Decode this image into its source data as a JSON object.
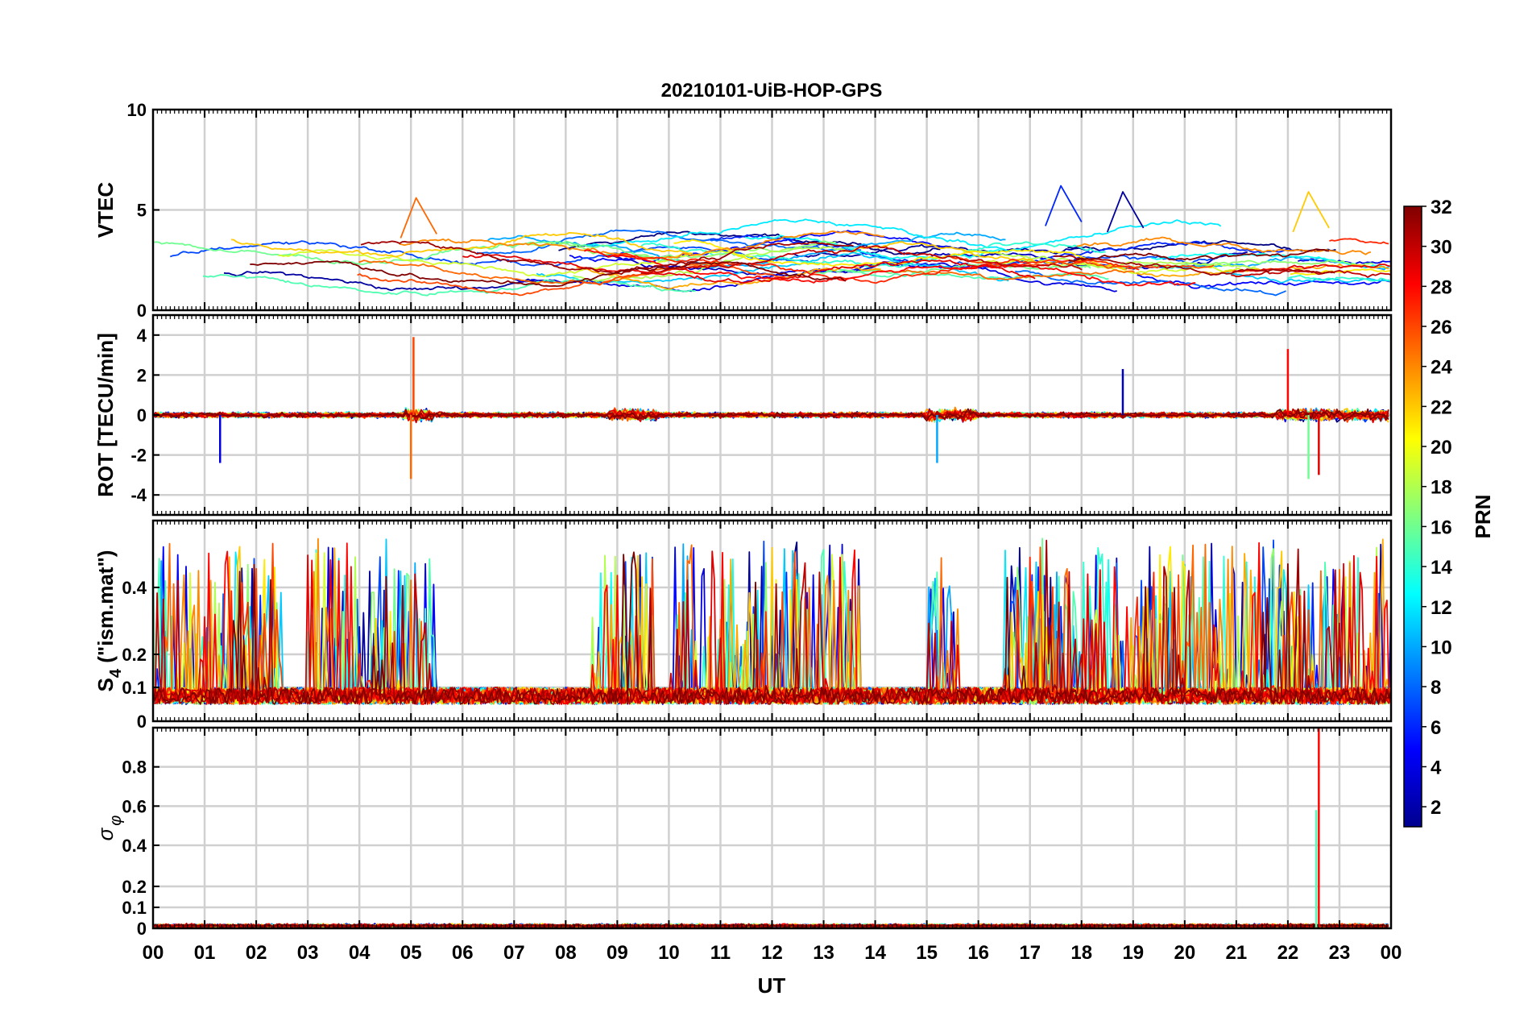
{
  "figure": {
    "title": "20210101-UiB-HOP-GPS",
    "xlabel": "UT",
    "x_ticks": [
      "00",
      "01",
      "02",
      "03",
      "04",
      "05",
      "06",
      "07",
      "08",
      "09",
      "10",
      "11",
      "12",
      "13",
      "14",
      "15",
      "16",
      "17",
      "18",
      "19",
      "20",
      "21",
      "22",
      "23",
      "00"
    ]
  },
  "colorbar": {
    "label": "PRN",
    "range": [
      1,
      32
    ],
    "ticks": [
      "2",
      "4",
      "6",
      "8",
      "10",
      "12",
      "14",
      "16",
      "18",
      "20",
      "22",
      "24",
      "26",
      "28",
      "30",
      "32"
    ],
    "colormap": "jet",
    "colors": [
      "#00008f",
      "#0000ff",
      "#00ffff",
      "#ffff00",
      "#ff0000",
      "#800000"
    ]
  },
  "chart_data": [
    {
      "type": "line",
      "ylabel": "VTEC",
      "ylim": [
        0,
        10
      ],
      "yticks": [
        "0",
        "5",
        "10"
      ],
      "xlim": [
        0,
        24
      ],
      "grid": true,
      "series_note": "GPS PRNs 1-32, colored by PRN",
      "baseline_range": [
        1,
        4
      ],
      "peaks": [
        {
          "time_ut": 5.1,
          "prn": 25,
          "value": 5.6
        },
        {
          "time_ut": 17.6,
          "prn": 6,
          "value": 6.2
        },
        {
          "time_ut": 18.8,
          "prn": 2,
          "value": 5.9
        },
        {
          "time_ut": 22.4,
          "prn": 22,
          "value": 5.9
        }
      ]
    },
    {
      "type": "line",
      "ylabel": "ROT [TECU/min]",
      "ylim": [
        -5,
        5
      ],
      "yticks": [
        "-4",
        "-2",
        "0",
        "2",
        "4"
      ],
      "xlim": [
        0,
        24
      ],
      "grid": true,
      "baseline_range": [
        -0.4,
        0.4
      ],
      "spikes": [
        {
          "time_ut": 1.3,
          "prn": 4,
          "value": -2.4
        },
        {
          "time_ut": 5.05,
          "prn": 26,
          "value": 3.9
        },
        {
          "time_ut": 5.0,
          "prn": 25,
          "value": -3.2
        },
        {
          "time_ut": 15.2,
          "prn": 10,
          "value": -2.4
        },
        {
          "time_ut": 18.8,
          "prn": 3,
          "value": 2.3
        },
        {
          "time_ut": 22.0,
          "prn": 28,
          "value": 3.3
        },
        {
          "time_ut": 22.4,
          "prn": 16,
          "value": -3.2
        },
        {
          "time_ut": 22.6,
          "prn": 29,
          "value": -3.0
        }
      ]
    },
    {
      "type": "line",
      "ylabel": "S4 (\"ism.mat\")",
      "ylabel_main": "S",
      "ylabel_sub": "4",
      "ylabel_rest": " (\"ism.mat\")",
      "ylim": [
        0,
        0.6
      ],
      "yticks": [
        "0",
        "0.1",
        "0.2",
        "0.4"
      ],
      "xlim": [
        0,
        24
      ],
      "grid": true,
      "baseline_range": [
        0.05,
        0.12
      ],
      "active_periods_ut": [
        [
          0,
          2.5
        ],
        [
          3,
          5.5
        ],
        [
          8.5,
          9.7
        ],
        [
          10,
          13.7
        ],
        [
          15,
          15.6
        ],
        [
          16.5,
          24
        ]
      ]
    },
    {
      "type": "line",
      "ylabel": "σ φ",
      "ylabel_main": "σ",
      "ylabel_sub": "φ",
      "ylim": [
        0,
        1
      ],
      "yticks": [
        "0",
        "0.1",
        "0.2",
        "0.4",
        "0.6",
        "0.8"
      ],
      "xlim": [
        0,
        24
      ],
      "grid": true,
      "baseline_range": [
        0,
        0.04
      ],
      "spikes": [
        {
          "time_ut": 22.55,
          "prn": 15,
          "value": 0.58
        },
        {
          "time_ut": 22.6,
          "prn": 28,
          "value": 1.0
        }
      ]
    }
  ]
}
